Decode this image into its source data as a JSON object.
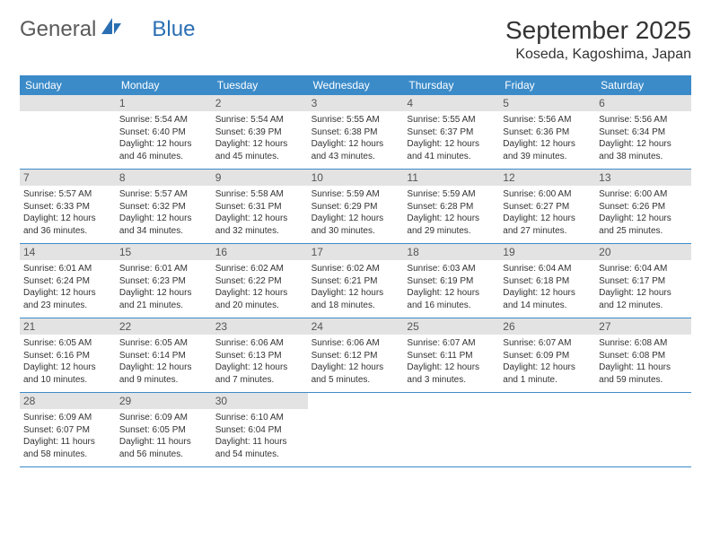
{
  "logo": {
    "text1": "General",
    "text2": "Blue",
    "color1": "#6a6a6a",
    "color2": "#2b6fb3"
  },
  "title": "September 2025",
  "location": "Koseda, Kagoshima, Japan",
  "header_bg": "#3b8bc9",
  "daynum_bg": "#e3e3e3",
  "border_color": "#3b8bc9",
  "weekdays": [
    "Sunday",
    "Monday",
    "Tuesday",
    "Wednesday",
    "Thursday",
    "Friday",
    "Saturday"
  ],
  "weeks": [
    [
      null,
      {
        "n": "1",
        "sr": "5:54 AM",
        "ss": "6:40 PM",
        "dl": "12 hours and 46 minutes."
      },
      {
        "n": "2",
        "sr": "5:54 AM",
        "ss": "6:39 PM",
        "dl": "12 hours and 45 minutes."
      },
      {
        "n": "3",
        "sr": "5:55 AM",
        "ss": "6:38 PM",
        "dl": "12 hours and 43 minutes."
      },
      {
        "n": "4",
        "sr": "5:55 AM",
        "ss": "6:37 PM",
        "dl": "12 hours and 41 minutes."
      },
      {
        "n": "5",
        "sr": "5:56 AM",
        "ss": "6:36 PM",
        "dl": "12 hours and 39 minutes."
      },
      {
        "n": "6",
        "sr": "5:56 AM",
        "ss": "6:34 PM",
        "dl": "12 hours and 38 minutes."
      }
    ],
    [
      {
        "n": "7",
        "sr": "5:57 AM",
        "ss": "6:33 PM",
        "dl": "12 hours and 36 minutes."
      },
      {
        "n": "8",
        "sr": "5:57 AM",
        "ss": "6:32 PM",
        "dl": "12 hours and 34 minutes."
      },
      {
        "n": "9",
        "sr": "5:58 AM",
        "ss": "6:31 PM",
        "dl": "12 hours and 32 minutes."
      },
      {
        "n": "10",
        "sr": "5:59 AM",
        "ss": "6:29 PM",
        "dl": "12 hours and 30 minutes."
      },
      {
        "n": "11",
        "sr": "5:59 AM",
        "ss": "6:28 PM",
        "dl": "12 hours and 29 minutes."
      },
      {
        "n": "12",
        "sr": "6:00 AM",
        "ss": "6:27 PM",
        "dl": "12 hours and 27 minutes."
      },
      {
        "n": "13",
        "sr": "6:00 AM",
        "ss": "6:26 PM",
        "dl": "12 hours and 25 minutes."
      }
    ],
    [
      {
        "n": "14",
        "sr": "6:01 AM",
        "ss": "6:24 PM",
        "dl": "12 hours and 23 minutes."
      },
      {
        "n": "15",
        "sr": "6:01 AM",
        "ss": "6:23 PM",
        "dl": "12 hours and 21 minutes."
      },
      {
        "n": "16",
        "sr": "6:02 AM",
        "ss": "6:22 PM",
        "dl": "12 hours and 20 minutes."
      },
      {
        "n": "17",
        "sr": "6:02 AM",
        "ss": "6:21 PM",
        "dl": "12 hours and 18 minutes."
      },
      {
        "n": "18",
        "sr": "6:03 AM",
        "ss": "6:19 PM",
        "dl": "12 hours and 16 minutes."
      },
      {
        "n": "19",
        "sr": "6:04 AM",
        "ss": "6:18 PM",
        "dl": "12 hours and 14 minutes."
      },
      {
        "n": "20",
        "sr": "6:04 AM",
        "ss": "6:17 PM",
        "dl": "12 hours and 12 minutes."
      }
    ],
    [
      {
        "n": "21",
        "sr": "6:05 AM",
        "ss": "6:16 PM",
        "dl": "12 hours and 10 minutes."
      },
      {
        "n": "22",
        "sr": "6:05 AM",
        "ss": "6:14 PM",
        "dl": "12 hours and 9 minutes."
      },
      {
        "n": "23",
        "sr": "6:06 AM",
        "ss": "6:13 PM",
        "dl": "12 hours and 7 minutes."
      },
      {
        "n": "24",
        "sr": "6:06 AM",
        "ss": "6:12 PM",
        "dl": "12 hours and 5 minutes."
      },
      {
        "n": "25",
        "sr": "6:07 AM",
        "ss": "6:11 PM",
        "dl": "12 hours and 3 minutes."
      },
      {
        "n": "26",
        "sr": "6:07 AM",
        "ss": "6:09 PM",
        "dl": "12 hours and 1 minute."
      },
      {
        "n": "27",
        "sr": "6:08 AM",
        "ss": "6:08 PM",
        "dl": "11 hours and 59 minutes."
      }
    ],
    [
      {
        "n": "28",
        "sr": "6:09 AM",
        "ss": "6:07 PM",
        "dl": "11 hours and 58 minutes."
      },
      {
        "n": "29",
        "sr": "6:09 AM",
        "ss": "6:05 PM",
        "dl": "11 hours and 56 minutes."
      },
      {
        "n": "30",
        "sr": "6:10 AM",
        "ss": "6:04 PM",
        "dl": "11 hours and 54 minutes."
      },
      null,
      null,
      null,
      null
    ]
  ],
  "labels": {
    "sunrise": "Sunrise:",
    "sunset": "Sunset:",
    "daylight": "Daylight:"
  }
}
